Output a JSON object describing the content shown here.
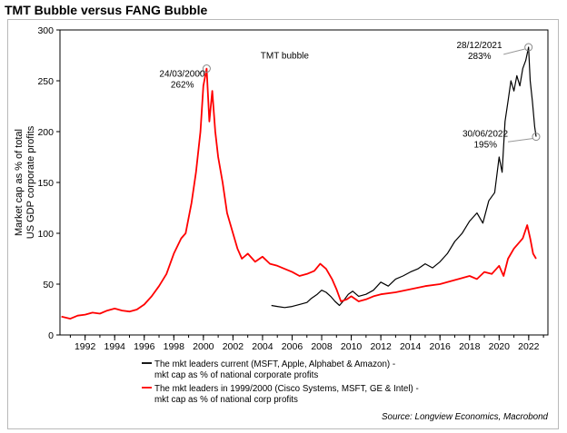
{
  "title": "TMT Bubble versus FANG Bubble",
  "chart_data": {
    "type": "line",
    "ylabel": [
      "Market cap as % of total",
      "US GDP corporate profits"
    ],
    "ylim": [
      0,
      300
    ],
    "yticks": [
      0,
      50,
      100,
      150,
      200,
      250,
      300
    ],
    "xlim": [
      1990.3,
      2023.3
    ],
    "xticks": [
      1992,
      1994,
      1996,
      1998,
      2000,
      2002,
      2004,
      2006,
      2008,
      2010,
      2012,
      2014,
      2016,
      2018,
      2020,
      2022
    ],
    "xtick_labels": [
      "1992",
      "1994",
      "1996",
      "1998",
      "2000",
      "2002",
      "2004",
      "2006",
      "2008",
      "2010",
      "2012",
      "2014",
      "2016",
      "2018",
      "2020",
      "2022"
    ],
    "grid": false,
    "series": [
      {
        "name": "The mkt leaders current (MSFT, Apple, Alphabet & Amazon) - mkt cap as % of national corporate profits",
        "color": "#000000",
        "x": [
          2004.6,
          2005.0,
          2005.5,
          2006.0,
          2006.5,
          2007.0,
          2007.3,
          2007.7,
          2008.0,
          2008.3,
          2008.6,
          2008.9,
          2009.2,
          2009.5,
          2009.8,
          2010.1,
          2010.5,
          2011.0,
          2011.5,
          2012.0,
          2012.5,
          2013.0,
          2013.5,
          2014.0,
          2014.5,
          2015.0,
          2015.5,
          2016.0,
          2016.5,
          2017.0,
          2017.5,
          2018.0,
          2018.5,
          2018.9,
          2019.3,
          2019.7,
          2020.0,
          2020.2,
          2020.4,
          2020.6,
          2020.8,
          2021.0,
          2021.2,
          2021.4,
          2021.6,
          2021.8,
          2021.99,
          2022.1,
          2022.25,
          2022.4,
          2022.5
        ],
        "values": [
          29,
          28,
          27,
          28,
          30,
          32,
          36,
          40,
          44,
          42,
          38,
          33,
          29,
          34,
          40,
          43,
          38,
          40,
          44,
          52,
          48,
          55,
          58,
          62,
          65,
          70,
          66,
          72,
          80,
          92,
          100,
          112,
          120,
          110,
          132,
          140,
          175,
          160,
          210,
          230,
          250,
          240,
          255,
          245,
          262,
          270,
          283,
          250,
          230,
          205,
          195
        ]
      },
      {
        "name": "The mkt leaders in 1999/2000 (Cisco Systems, MSFT, GE & Intel) - mkt cap as % of national corp profits",
        "color": "#ff0000",
        "x": [
          1990.4,
          1991.0,
          1991.5,
          1992.0,
          1992.5,
          1993.0,
          1993.5,
          1994.0,
          1994.5,
          1995.0,
          1995.5,
          1996.0,
          1996.5,
          1997.0,
          1997.5,
          1998.0,
          1998.5,
          1998.8,
          1999.2,
          1999.5,
          1999.8,
          2000.0,
          2000.22,
          2000.4,
          2000.6,
          2000.8,
          2001.0,
          2001.3,
          2001.6,
          2002.0,
          2002.3,
          2002.6,
          2003.0,
          2003.5,
          2004.0,
          2004.5,
          2005.0,
          2005.5,
          2006.0,
          2006.5,
          2007.0,
          2007.5,
          2007.9,
          2008.3,
          2008.7,
          2009.0,
          2009.3,
          2009.7,
          2010.0,
          2010.5,
          2011.0,
          2011.5,
          2012.0,
          2013.0,
          2014.0,
          2015.0,
          2016.0,
          2017.0,
          2018.0,
          2018.5,
          2019.0,
          2019.5,
          2020.0,
          2020.3,
          2020.6,
          2021.0,
          2021.3,
          2021.6,
          2021.9,
          2022.1,
          2022.3,
          2022.5
        ],
        "values": [
          18,
          16,
          19,
          20,
          22,
          21,
          24,
          26,
          24,
          23,
          25,
          30,
          38,
          48,
          60,
          80,
          95,
          100,
          130,
          160,
          200,
          245,
          262,
          210,
          240,
          200,
          175,
          150,
          120,
          100,
          85,
          75,
          80,
          72,
          77,
          70,
          68,
          65,
          62,
          58,
          60,
          63,
          70,
          65,
          55,
          45,
          33,
          35,
          38,
          33,
          35,
          38,
          40,
          42,
          45,
          48,
          50,
          54,
          58,
          55,
          62,
          60,
          68,
          58,
          75,
          85,
          90,
          95,
          108,
          95,
          80,
          75
        ]
      }
    ],
    "annotations": [
      {
        "date": "24/03/2000",
        "value": "262%",
        "x": 2000.22,
        "y": 262
      },
      {
        "date": "28/12/2021",
        "value": "283%",
        "x": 2021.99,
        "y": 283
      },
      {
        "date": "30/06/2022",
        "value": "195%",
        "x": 2022.5,
        "y": 195
      }
    ],
    "tmt_label": "TMT bubble",
    "legend": {
      "placement": "bottom",
      "items": [
        {
          "line1": "The mkt leaders current (MSFT, Apple, Alphabet & Amazon) -",
          "line2": "mkt cap as % of national corporate profits",
          "color": "#000000"
        },
        {
          "line1": "The mkt leaders in 1999/2000 (Cisco Systems, MSFT, GE & Intel) -",
          "line2": "mkt cap as % of national corp profits",
          "color": "#ff0000"
        }
      ]
    },
    "source": "Source: Longview Economics, Macrobond"
  }
}
